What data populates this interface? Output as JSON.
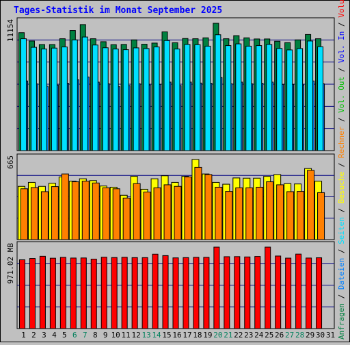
{
  "title": "Tages-Statistik im Monat September 2025",
  "colors": {
    "background": "#c0c0c0",
    "title": "#0000ff",
    "hits": "#008040",
    "files": "#0080ff",
    "pages": "#00e0ff",
    "visits": "#ffff00",
    "sites": "#ff8000",
    "volume": "#ff0000",
    "weekend_day": "#00805c",
    "weekday": "#000000"
  },
  "chart_data": [
    {
      "type": "bar",
      "name": "traffic",
      "y_max_label": "11154",
      "y_max": 11154,
      "categories": [
        "1",
        "2",
        "3",
        "4",
        "5",
        "6",
        "7",
        "8",
        "9",
        "10",
        "11",
        "12",
        "13",
        "14",
        "15",
        "16",
        "17",
        "18",
        "19",
        "20",
        "21",
        "22",
        "23",
        "24",
        "25",
        "26",
        "27",
        "28",
        "29",
        "30",
        "31"
      ],
      "weekend_categories": [
        "6",
        "7",
        "13",
        "14",
        "20",
        "21",
        "27",
        "28"
      ],
      "series": [
        {
          "name": "Anfragen",
          "color": "#008040",
          "values": [
            10330,
            9600,
            9290,
            9290,
            9800,
            10520,
            11040,
            9800,
            9540,
            9280,
            9300,
            9700,
            9320,
            9420,
            10400,
            9450,
            9820,
            9800,
            9880,
            11154,
            9800,
            10070,
            9880,
            9780,
            9780,
            9580,
            9460,
            9700,
            10170,
            9800,
            0
          ]
        },
        {
          "name": "Dateien",
          "color": "#0080ff",
          "values": [
            6100,
            5840,
            5640,
            5740,
            5900,
            6200,
            6450,
            6000,
            5850,
            5600,
            5700,
            5850,
            5750,
            5800,
            6000,
            5700,
            6000,
            5920,
            5900,
            6400,
            5850,
            6000,
            5850,
            5900,
            6000,
            5800,
            5800,
            5750,
            6100,
            5850,
            0
          ]
        },
        {
          "name": "Seiten",
          "color": "#00e0ff",
          "values": [
            9800,
            9050,
            8900,
            8980,
            9080,
            9700,
            9950,
            9250,
            9010,
            8900,
            8840,
            9000,
            8940,
            9080,
            9640,
            8900,
            9300,
            9280,
            9150,
            10150,
            9200,
            9350,
            9150,
            9200,
            9300,
            8950,
            8820,
            8940,
            9600,
            9100,
            0
          ]
        }
      ]
    },
    {
      "type": "bar",
      "name": "visits",
      "y_max_label": "665",
      "y_max": 665,
      "categories": [
        "1",
        "2",
        "3",
        "4",
        "5",
        "6",
        "7",
        "8",
        "9",
        "10",
        "11",
        "12",
        "13",
        "14",
        "15",
        "16",
        "17",
        "18",
        "19",
        "20",
        "21",
        "22",
        "23",
        "24",
        "25",
        "26",
        "27",
        "28",
        "29",
        "30",
        "31"
      ],
      "series": [
        {
          "name": "Besuche",
          "color": "#ffff00",
          "values": [
            442,
            475,
            442,
            468,
            520,
            485,
            505,
            490,
            445,
            435,
            368,
            525,
            418,
            505,
            530,
            475,
            525,
            665,
            545,
            475,
            460,
            512,
            510,
            510,
            525,
            540,
            465,
            462,
            590,
            485,
            0
          ]
        },
        {
          "name": "Rechner",
          "color": "#ff8000",
          "values": [
            422,
            432,
            398,
            440,
            545,
            480,
            485,
            470,
            430,
            422,
            345,
            465,
            395,
            430,
            455,
            442,
            520,
            600,
            540,
            435,
            400,
            430,
            430,
            435,
            480,
            455,
            398,
            400,
            575,
            390,
            0
          ]
        }
      ]
    },
    {
      "type": "bar",
      "name": "volume",
      "y_max_label": "971.02 MB",
      "y_max": 971.02,
      "unit": "MB",
      "categories": [
        "1",
        "2",
        "3",
        "4",
        "5",
        "6",
        "7",
        "8",
        "9",
        "10",
        "11",
        "12",
        "13",
        "14",
        "15",
        "16",
        "17",
        "18",
        "19",
        "20",
        "21",
        "22",
        "23",
        "24",
        "25",
        "26",
        "27",
        "28",
        "29",
        "30",
        "31"
      ],
      "series": [
        {
          "name": "Volumen",
          "color": "#ff0000",
          "values": [
            820,
            836,
            862,
            839,
            849,
            841,
            842,
            828,
            851,
            847,
            850,
            846,
            846,
            887,
            870,
            843,
            846,
            849,
            849,
            971,
            857,
            858,
            854,
            860,
            971,
            865,
            840,
            888,
            841,
            844,
            0
          ]
        }
      ]
    }
  ],
  "right_labels": {
    "top": [
      {
        "text": "Anfragen",
        "color": "#008040"
      },
      {
        "text": " / ",
        "color": "#000000"
      },
      {
        "text": "Dateien",
        "color": "#0080ff"
      },
      {
        "text": " / ",
        "color": "#000000"
      },
      {
        "text": "Seiten",
        "color": "#00e0ff"
      },
      {
        "text": " / ",
        "color": "#000000"
      },
      {
        "text": "Besuche",
        "color": "#ffff00"
      },
      {
        "text": " / ",
        "color": "#000000"
      },
      {
        "text": "Rechner",
        "color": "#ff8000"
      },
      {
        "text": " / ",
        "color": "#000000"
      },
      {
        "text": "Vol. Out",
        "color": "#00c000"
      },
      {
        "text": " / ",
        "color": "#000000"
      },
      {
        "text": "Vol. In",
        "color": "#0000ff"
      },
      {
        "text": " / ",
        "color": "#000000"
      },
      {
        "text": "Volumen",
        "color": "#ff0000"
      }
    ]
  }
}
